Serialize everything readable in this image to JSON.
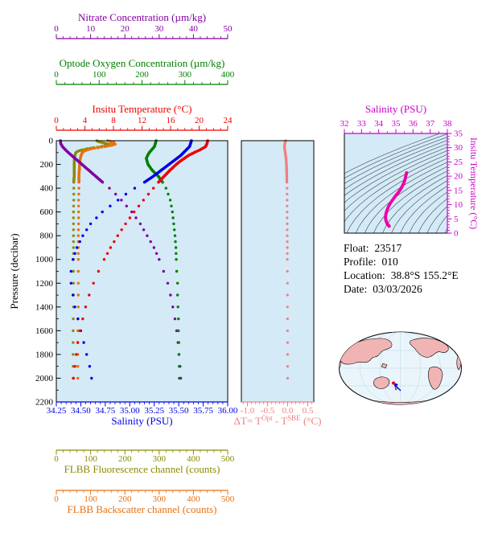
{
  "colors": {
    "plot_bg": "#d4eaf6",
    "nitrate": "#8000a0",
    "oxygen": "#008000",
    "temperature": "#ee0000",
    "salinity": "#0000e6",
    "fluorescence": "#8b8b00",
    "backscatter": "#e87010",
    "delta_t": "#f08080",
    "ts": "#cc00cc",
    "ts_curve": "#ee00aa",
    "frame": "#000000",
    "map_land": "#f0b4b4",
    "map_ocean": "#eaf5fb"
  },
  "chart_data": [
    {
      "id": "main-profile",
      "type": "line",
      "ylabel": "Pressure (decibar)",
      "ylim": [
        0,
        2200
      ],
      "yticks": [
        0,
        200,
        400,
        600,
        800,
        1000,
        1200,
        1400,
        1600,
        1800,
        2000,
        2200
      ],
      "x_axes": [
        {
          "key": "nitrate",
          "label": "Nitrate Concentration (µm/kg)",
          "side": "top",
          "lim": [
            0,
            50
          ],
          "ticks": [
            0,
            10,
            20,
            30,
            40,
            50
          ],
          "decimals": 0
        },
        {
          "key": "oxygen",
          "label": "Optode Oxygen Concentration (µm/kg)",
          "side": "top",
          "lim": [
            0,
            400
          ],
          "ticks": [
            0,
            100,
            200,
            300,
            400
          ],
          "decimals": 0
        },
        {
          "key": "temperature",
          "label": "Insitu Temperature (°C)",
          "side": "top",
          "lim": [
            0,
            24
          ],
          "ticks": [
            0,
            4,
            8,
            12,
            16,
            20,
            24
          ],
          "decimals": 0
        },
        {
          "key": "salinity",
          "label": "Salinity (PSU)",
          "side": "bottom",
          "lim": [
            34.25,
            36.0
          ],
          "ticks": [
            34.25,
            34.5,
            34.75,
            35.0,
            35.25,
            35.5,
            35.75,
            36.0
          ],
          "decimals": 2
        },
        {
          "key": "fluorescence",
          "label": "FLBB Fluorescence channel (counts)",
          "side": "bottom",
          "lim": [
            0,
            500
          ],
          "ticks": [
            0,
            100,
            200,
            300,
            400,
            500
          ],
          "decimals": 0
        },
        {
          "key": "backscatter",
          "label": "FLBB Backscatter channel (counts)",
          "side": "bottom",
          "lim": [
            0,
            500
          ],
          "ticks": [
            0,
            100,
            200,
            300,
            400,
            500
          ],
          "decimals": 0
        }
      ],
      "series": [
        {
          "key": "fluorescence",
          "points": [
            [
              0,
              118
            ],
            [
              10,
              125
            ],
            [
              20,
              140
            ],
            [
              30,
              152
            ],
            [
              40,
              148
            ],
            [
              50,
              130
            ],
            [
              60,
              105
            ],
            [
              70,
              88
            ],
            [
              80,
              72
            ],
            [
              90,
              62
            ],
            [
              100,
              57
            ],
            [
              125,
              54
            ],
            [
              150,
              53
            ],
            [
              200,
              52
            ],
            [
              250,
              52
            ],
            [
              300,
              52
            ],
            [
              350,
              51
            ],
            [
              400,
              51
            ],
            [
              500,
              51
            ],
            [
              600,
              50
            ],
            [
              700,
              50
            ],
            [
              800,
              50
            ],
            [
              900,
              50
            ],
            [
              1000,
              50
            ],
            [
              1200,
              50
            ],
            [
              1400,
              50
            ],
            [
              1600,
              49
            ],
            [
              1800,
              49
            ],
            [
              2000,
              49
            ]
          ]
        },
        {
          "key": "backscatter",
          "points": [
            [
              0,
              150
            ],
            [
              10,
              168
            ],
            [
              20,
              158
            ],
            [
              30,
              172
            ],
            [
              40,
              160
            ],
            [
              50,
              142
            ],
            [
              60,
              120
            ],
            [
              70,
              100
            ],
            [
              80,
              88
            ],
            [
              90,
              80
            ],
            [
              100,
              76
            ],
            [
              125,
              72
            ],
            [
              150,
              70
            ],
            [
              200,
              68
            ],
            [
              250,
              67
            ],
            [
              300,
              66
            ],
            [
              350,
              66
            ],
            [
              400,
              66
            ],
            [
              500,
              65
            ],
            [
              600,
              65
            ],
            [
              700,
              65
            ],
            [
              800,
              64
            ],
            [
              900,
              64
            ],
            [
              1000,
              64
            ],
            [
              1200,
              64
            ],
            [
              1400,
              64
            ],
            [
              1600,
              63
            ],
            [
              1800,
              63
            ],
            [
              2000,
              63
            ]
          ]
        },
        {
          "key": "nitrate",
          "points": [
            [
              0,
              1.2
            ],
            [
              25,
              1.3
            ],
            [
              50,
              1.8
            ],
            [
              75,
              2.6
            ],
            [
              100,
              3.5
            ],
            [
              125,
              4.5
            ],
            [
              150,
              5.5
            ],
            [
              175,
              6.5
            ],
            [
              200,
              7.5
            ],
            [
              250,
              9.5
            ],
            [
              300,
              11.5
            ],
            [
              350,
              13.5
            ],
            [
              400,
              15.5
            ],
            [
              450,
              17.3
            ],
            [
              500,
              19
            ],
            [
              600,
              22
            ],
            [
              700,
              24.5
            ],
            [
              800,
              26.5
            ],
            [
              900,
              28.5
            ],
            [
              1000,
              30
            ],
            [
              1100,
              31.3
            ],
            [
              1200,
              32.5
            ],
            [
              1300,
              33.3
            ],
            [
              1400,
              34
            ],
            [
              1500,
              34.6
            ],
            [
              1600,
              35.1
            ],
            [
              1700,
              35.5
            ],
            [
              1800,
              35.8
            ],
            [
              1900,
              36.1
            ],
            [
              2000,
              36.3
            ]
          ]
        },
        {
          "key": "oxygen",
          "points": [
            [
              0,
              233
            ],
            [
              25,
              231
            ],
            [
              50,
              229
            ],
            [
              75,
              223
            ],
            [
              100,
              217
            ],
            [
              125,
              213
            ],
            [
              150,
              210
            ],
            [
              175,
              212
            ],
            [
              200,
              214
            ],
            [
              250,
              224
            ],
            [
              300,
              238
            ],
            [
              350,
              248
            ],
            [
              400,
              256
            ],
            [
              450,
              261
            ],
            [
              500,
              266
            ],
            [
              600,
              271
            ],
            [
              700,
              274
            ],
            [
              800,
              277
            ],
            [
              900,
              279
            ],
            [
              1000,
              280
            ],
            [
              1100,
              281
            ],
            [
              1200,
              283
            ],
            [
              1300,
              283
            ],
            [
              1400,
              284
            ],
            [
              1500,
              285
            ],
            [
              1600,
              285
            ],
            [
              1700,
              286
            ],
            [
              1800,
              286
            ],
            [
              1900,
              287
            ],
            [
              2000,
              287
            ]
          ]
        },
        {
          "key": "salinity",
          "points": [
            [
              0,
              35.63
            ],
            [
              25,
              35.62
            ],
            [
              50,
              35.61
            ],
            [
              75,
              35.58
            ],
            [
              100,
              35.55
            ],
            [
              125,
              35.52
            ],
            [
              150,
              35.48
            ],
            [
              175,
              35.44
            ],
            [
              200,
              35.4
            ],
            [
              250,
              35.32
            ],
            [
              300,
              35.24
            ],
            [
              350,
              35.15
            ],
            [
              400,
              35.05
            ],
            [
              450,
              34.96
            ],
            [
              500,
              34.88
            ],
            [
              600,
              34.72
            ],
            [
              700,
              34.6
            ],
            [
              800,
              34.52
            ],
            [
              900,
              34.46
            ],
            [
              1000,
              34.42
            ],
            [
              1100,
              34.4
            ],
            [
              1200,
              34.4
            ],
            [
              1300,
              34.42
            ],
            [
              1400,
              34.44
            ],
            [
              1500,
              34.47
            ],
            [
              1600,
              34.5
            ],
            [
              1700,
              34.53
            ],
            [
              1800,
              34.56
            ],
            [
              1900,
              34.59
            ],
            [
              2000,
              34.61
            ]
          ]
        },
        {
          "key": "temperature",
          "points": [
            [
              0,
              21.2
            ],
            [
              25,
              21.1
            ],
            [
              50,
              20.9
            ],
            [
              75,
              20.2
            ],
            [
              100,
              19.3
            ],
            [
              125,
              18.5
            ],
            [
              150,
              17.9
            ],
            [
              175,
              17.3
            ],
            [
              200,
              16.8
            ],
            [
              250,
              15.9
            ],
            [
              300,
              15.1
            ],
            [
              350,
              14.3
            ],
            [
              400,
              13.6
            ],
            [
              450,
              12.9
            ],
            [
              500,
              12.2
            ],
            [
              600,
              10.9
            ],
            [
              700,
              9.7
            ],
            [
              800,
              8.6
            ],
            [
              900,
              7.6
            ],
            [
              1000,
              6.7
            ],
            [
              1100,
              5.9
            ],
            [
              1200,
              5.2
            ],
            [
              1300,
              4.6
            ],
            [
              1400,
              4.1
            ],
            [
              1500,
              3.7
            ],
            [
              1600,
              3.3
            ],
            [
              1700,
              3.0
            ],
            [
              1800,
              2.8
            ],
            [
              1900,
              2.6
            ],
            [
              2000,
              2.4
            ]
          ]
        }
      ]
    },
    {
      "id": "delta-t",
      "type": "line",
      "xlabel_rich": [
        {
          "t": "ΔT= T"
        },
        {
          "t": "Opt",
          "sup": true
        },
        {
          "t": " - T"
        },
        {
          "t": "SBE",
          "sup": true
        },
        {
          "t": " (°C)"
        }
      ],
      "xlim": [
        -1.15,
        0.65
      ],
      "xticks": [
        -1,
        -0.5,
        0,
        0.5
      ],
      "decimals": 1,
      "ylim": [
        0,
        2200
      ],
      "points": [
        [
          0,
          -0.05
        ],
        [
          25,
          -0.07
        ],
        [
          50,
          -0.08
        ],
        [
          75,
          -0.07
        ],
        [
          100,
          -0.06
        ],
        [
          125,
          -0.05
        ],
        [
          150,
          -0.04
        ],
        [
          200,
          -0.03
        ],
        [
          250,
          -0.025
        ],
        [
          300,
          -0.02
        ],
        [
          350,
          -0.02
        ],
        [
          400,
          -0.015
        ],
        [
          500,
          -0.015
        ],
        [
          600,
          -0.012
        ],
        [
          700,
          -0.01
        ],
        [
          800,
          -0.01
        ],
        [
          900,
          -0.008
        ],
        [
          1000,
          -0.008
        ],
        [
          1100,
          -0.006
        ],
        [
          1200,
          -0.005
        ],
        [
          1300,
          -0.005
        ],
        [
          1400,
          -0.004
        ],
        [
          1500,
          -0.003
        ],
        [
          1600,
          -0.002
        ],
        [
          1700,
          -0.002
        ],
        [
          1800,
          -0.001
        ],
        [
          1900,
          -0.001
        ],
        [
          2000,
          0
        ]
      ]
    },
    {
      "id": "ts-diagram",
      "type": "scatter",
      "xlabel": "Salinity (PSU)",
      "ylabel": "Insitu Temperature (°C)",
      "xlim": [
        32,
        38
      ],
      "ylim": [
        0,
        35
      ],
      "xticks": [
        32,
        33,
        34,
        35,
        36,
        37,
        38
      ],
      "yticks": [
        0,
        5,
        10,
        15,
        20,
        25,
        30,
        35
      ],
      "isopycnals": {
        "min": 21.2,
        "max": 29.0,
        "step": 0.4
      },
      "points": [
        [
          35.63,
          21.2
        ],
        [
          35.62,
          21.1
        ],
        [
          35.61,
          20.9
        ],
        [
          35.58,
          20.2
        ],
        [
          35.55,
          19.3
        ],
        [
          35.52,
          18.5
        ],
        [
          35.48,
          17.9
        ],
        [
          35.44,
          17.3
        ],
        [
          35.4,
          16.8
        ],
        [
          35.32,
          15.9
        ],
        [
          35.24,
          15.1
        ],
        [
          35.15,
          14.3
        ],
        [
          35.05,
          13.6
        ],
        [
          34.96,
          12.9
        ],
        [
          34.88,
          12.2
        ],
        [
          34.72,
          10.9
        ],
        [
          34.6,
          9.7
        ],
        [
          34.52,
          8.6
        ],
        [
          34.46,
          7.6
        ],
        [
          34.42,
          6.7
        ],
        [
          34.4,
          5.9
        ],
        [
          34.4,
          5.2
        ],
        [
          34.42,
          4.6
        ],
        [
          34.44,
          4.1
        ],
        [
          34.47,
          3.7
        ],
        [
          34.5,
          3.3
        ],
        [
          34.53,
          3.0
        ],
        [
          34.56,
          2.8
        ],
        [
          34.59,
          2.6
        ],
        [
          34.61,
          2.4
        ]
      ]
    }
  ],
  "annotation": {
    "lines": [
      {
        "label": "Float:",
        "value": "23517"
      },
      {
        "label": "Profile:",
        "value": "010"
      },
      {
        "label": "Location:",
        "value": "38.8°S 155.2°E"
      },
      {
        "label": "Date:",
        "value": "03/03/2026"
      }
    ]
  }
}
